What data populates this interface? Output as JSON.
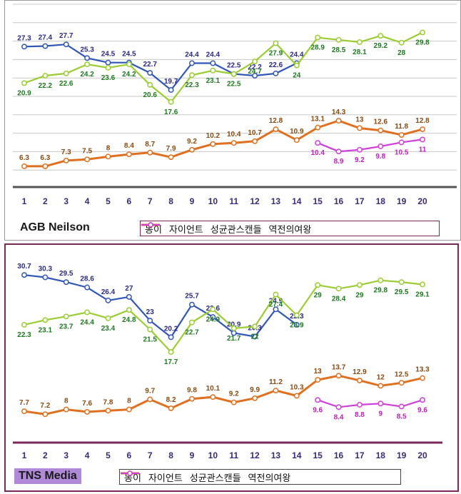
{
  "legend": [
    "동이",
    "자이언트",
    "성균관스캔들",
    "역전의여왕"
  ],
  "colors": {
    "s0": "#3057b8",
    "s1": "#9acd32",
    "s2": "#e07020",
    "s3": "#d040d8",
    "label0": "#2a2a8a",
    "label1": "#1e7a1e",
    "label2": "#8a4a10",
    "label3": "#c020c0"
  },
  "chart_data": [
    {
      "type": "line",
      "source": "AGB Neilson",
      "x": [
        1,
        2,
        3,
        4,
        5,
        6,
        7,
        8,
        9,
        10,
        11,
        12,
        13,
        14,
        15,
        16,
        17,
        18,
        19,
        20
      ],
      "ylim": [
        0,
        34
      ],
      "grid": true,
      "legend_position": "bottom",
      "series": [
        {
          "name": "동이",
          "values": [
            27.3,
            27.4,
            27.7,
            25.3,
            24.5,
            24.5,
            22.7,
            19.7,
            24.4,
            24.4,
            22.5,
            22.2,
            22.6,
            24.4,
            null,
            null,
            null,
            null,
            null,
            null
          ]
        },
        {
          "name": "자이언트",
          "values": [
            20.9,
            22.2,
            22.6,
            24.2,
            23.6,
            24.2,
            20.6,
            17.6,
            22.3,
            23.1,
            22.5,
            24.7,
            27.9,
            24,
            28.9,
            28.5,
            28.1,
            29.2,
            28,
            29.8
          ]
        },
        {
          "name": "성균관스캔들",
          "values": [
            6.3,
            6.3,
            7.3,
            7.5,
            8,
            8.4,
            8.7,
            7.9,
            9.2,
            10.2,
            10.4,
            10.7,
            12.8,
            10.9,
            13.1,
            14.3,
            13,
            12.6,
            11.8,
            12.8
          ]
        },
        {
          "name": "역전의여왕",
          "values": [
            null,
            null,
            null,
            null,
            null,
            null,
            null,
            null,
            null,
            null,
            null,
            null,
            null,
            null,
            10.4,
            8.9,
            9.2,
            9.8,
            10.5,
            11
          ]
        }
      ]
    },
    {
      "type": "line",
      "source": "TNS Media",
      "x": [
        1,
        2,
        3,
        4,
        5,
        6,
        7,
        8,
        9,
        10,
        11,
        12,
        13,
        14,
        15,
        16,
        17,
        18,
        19,
        20
      ],
      "ylim": [
        0,
        34
      ],
      "grid": false,
      "legend_position": "bottom",
      "series": [
        {
          "name": "동이",
          "values": [
            30.7,
            30.3,
            29.5,
            28.6,
            26.4,
            27,
            23,
            20.2,
            25.7,
            23.6,
            20.9,
            20.3,
            24.9,
            22.3,
            null,
            null,
            null,
            null,
            null,
            null
          ]
        },
        {
          "name": "자이언트",
          "values": [
            22.3,
            23.1,
            23.7,
            24.4,
            23.4,
            24.8,
            21.5,
            17.7,
            22.7,
            24.9,
            21.7,
            22,
            27.4,
            23.9,
            29,
            28.4,
            29,
            29.8,
            29.5,
            29.1
          ]
        },
        {
          "name": "성균관스캔들",
          "values": [
            7.7,
            7.2,
            8,
            7.6,
            7.8,
            8,
            9.7,
            8.2,
            9.8,
            10.1,
            9.2,
            9.9,
            11.2,
            10.3,
            13,
            13.7,
            12.9,
            12,
            12.5,
            13.3
          ]
        },
        {
          "name": "역전의여왕",
          "values": [
            null,
            null,
            null,
            null,
            null,
            null,
            null,
            null,
            null,
            null,
            null,
            null,
            null,
            null,
            9.6,
            8.4,
            8.8,
            9,
            8.5,
            9.6
          ]
        }
      ]
    }
  ]
}
